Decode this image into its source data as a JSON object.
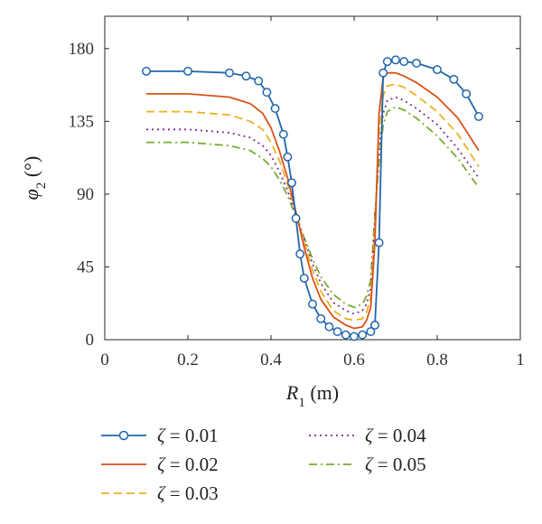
{
  "chart_data": {
    "type": "line",
    "xlabel": "R1 (m)",
    "ylabel": "φ2 (°)",
    "xlim": [
      0,
      1
    ],
    "ylim": [
      0,
      200
    ],
    "x_ticks": [
      "0",
      "0.2",
      "0.4",
      "0.6",
      "0.8",
      "1"
    ],
    "y_ticks": [
      "0",
      "45",
      "90",
      "135",
      "180"
    ],
    "grid": false,
    "legend_position": "bottom",
    "series": [
      {
        "name": "ζ = 0.01",
        "color": "#2166ac",
        "dash": "solid",
        "marker": "circle",
        "x": [
          0.1,
          0.2,
          0.3,
          0.34,
          0.37,
          0.39,
          0.41,
          0.43,
          0.44,
          0.45,
          0.46,
          0.47,
          0.48,
          0.5,
          0.52,
          0.54,
          0.56,
          0.58,
          0.6,
          0.62,
          0.64,
          0.65,
          0.66,
          0.67,
          0.68,
          0.7,
          0.72,
          0.75,
          0.8,
          0.84,
          0.87,
          0.9
        ],
        "y": [
          166,
          166,
          165,
          163,
          160,
          153,
          143,
          127,
          113,
          97,
          75,
          53,
          38,
          22,
          13,
          8,
          5,
          3,
          2,
          3,
          5,
          9,
          60,
          165,
          172,
          173,
          172,
          171,
          167,
          161,
          152,
          138
        ]
      },
      {
        "name": "ζ = 0.02",
        "color": "#d95319",
        "dash": "solid",
        "marker": "none",
        "x": [
          0.1,
          0.2,
          0.3,
          0.35,
          0.38,
          0.4,
          0.42,
          0.44,
          0.46,
          0.48,
          0.5,
          0.52,
          0.55,
          0.58,
          0.6,
          0.62,
          0.63,
          0.64,
          0.65,
          0.66,
          0.67,
          0.68,
          0.7,
          0.72,
          0.75,
          0.8,
          0.85,
          0.9
        ],
        "y": [
          152,
          152,
          150,
          146,
          140,
          131,
          117,
          100,
          79,
          57,
          38,
          25,
          14,
          9,
          7,
          8,
          12,
          20,
          60,
          140,
          162,
          165,
          165,
          163,
          159,
          150,
          137,
          117
        ]
      },
      {
        "name": "ζ = 0.03",
        "color": "#edb120",
        "dash": "dashed",
        "marker": "none",
        "x": [
          0.1,
          0.2,
          0.3,
          0.35,
          0.38,
          0.4,
          0.42,
          0.44,
          0.46,
          0.48,
          0.5,
          0.52,
          0.55,
          0.58,
          0.6,
          0.62,
          0.63,
          0.64,
          0.65,
          0.66,
          0.67,
          0.68,
          0.7,
          0.72,
          0.75,
          0.8,
          0.85,
          0.9
        ],
        "y": [
          141,
          141,
          139,
          135,
          130,
          122,
          111,
          96,
          79,
          60,
          43,
          30,
          18,
          13,
          12,
          13,
          17,
          26,
          70,
          128,
          151,
          157,
          158,
          156,
          151,
          141,
          127,
          107
        ]
      },
      {
        "name": "ζ = 0.04",
        "color": "#7e2f8e",
        "dash": "dotted",
        "marker": "none",
        "x": [
          0.1,
          0.2,
          0.3,
          0.35,
          0.38,
          0.4,
          0.42,
          0.44,
          0.46,
          0.48,
          0.5,
          0.52,
          0.55,
          0.58,
          0.6,
          0.62,
          0.63,
          0.64,
          0.65,
          0.66,
          0.67,
          0.68,
          0.7,
          0.72,
          0.75,
          0.8,
          0.85,
          0.9
        ],
        "y": [
          130,
          130,
          128,
          125,
          120,
          114,
          104,
          92,
          78,
          62,
          47,
          35,
          23,
          18,
          16,
          18,
          22,
          32,
          75,
          118,
          140,
          148,
          150,
          148,
          143,
          133,
          118,
          100
        ]
      },
      {
        "name": "ζ = 0.05",
        "color": "#77ac30",
        "dash": "dashdot",
        "marker": "none",
        "x": [
          0.1,
          0.2,
          0.3,
          0.35,
          0.38,
          0.4,
          0.42,
          0.44,
          0.46,
          0.48,
          0.5,
          0.52,
          0.55,
          0.58,
          0.6,
          0.62,
          0.63,
          0.64,
          0.65,
          0.66,
          0.67,
          0.68,
          0.7,
          0.72,
          0.75,
          0.8,
          0.85,
          0.9
        ],
        "y": [
          122,
          122,
          120,
          117,
          112,
          107,
          99,
          89,
          76,
          63,
          50,
          39,
          28,
          22,
          20,
          22,
          27,
          37,
          78,
          110,
          133,
          141,
          144,
          142,
          137,
          126,
          112,
          94
        ]
      }
    ]
  }
}
